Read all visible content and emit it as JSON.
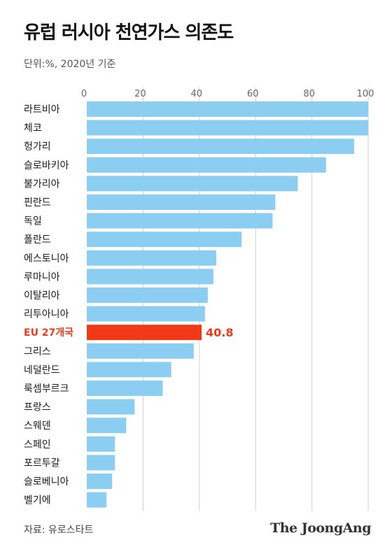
{
  "title": "유럽 러시아 천연가스 의존도",
  "subtitle": "단위:%, 2020년 기준",
  "source": "자료: 유로스타트",
  "brand": "The JoongAng",
  "colors": {
    "bar": "#8ccdf2",
    "highlight": "#f03a17",
    "axis_text": "#666666",
    "grid": "#cfcfcf"
  },
  "chart_data": {
    "type": "bar",
    "orientation": "horizontal",
    "categories": [
      "라트비아",
      "체코",
      "헝가리",
      "슬로바키아",
      "불가리아",
      "핀란드",
      "독일",
      "폴란드",
      "에스토니아",
      "루마니아",
      "이탈리아",
      "리투아니아",
      "EU 27개국",
      "그리스",
      "네덜란드",
      "룩셈부르크",
      "프랑스",
      "스웨덴",
      "스페인",
      "포르투갈",
      "슬로베니아",
      "벨기에"
    ],
    "values": [
      100,
      100,
      95,
      85,
      75,
      67,
      66,
      55,
      46,
      45,
      43,
      42,
      40.8,
      38,
      30,
      27,
      17,
      14,
      10,
      10,
      9,
      7
    ],
    "highlight_index": 12,
    "highlight_label": "40.8",
    "xticks": [
      0,
      20,
      40,
      60,
      80,
      100
    ],
    "xlim": [
      0,
      100
    ],
    "grid": true
  }
}
